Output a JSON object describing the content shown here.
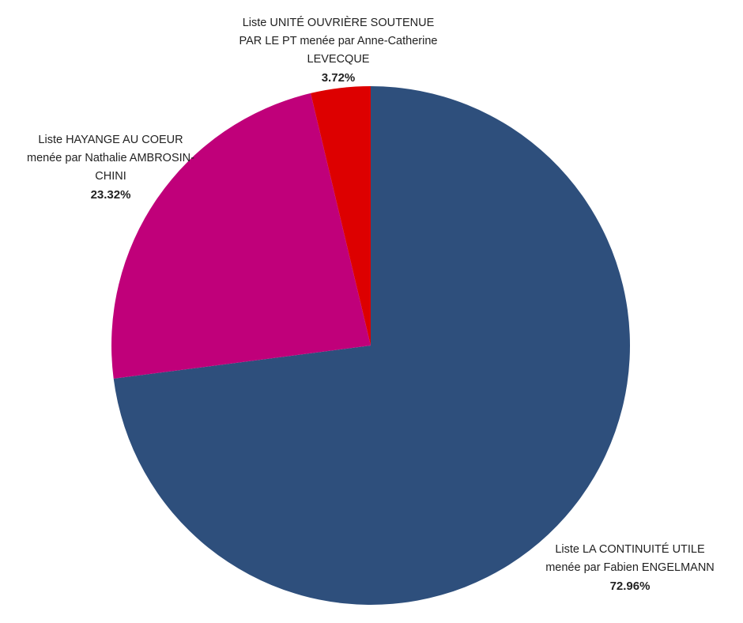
{
  "chart_data": {
    "type": "pie",
    "categories": [
      "Liste LA CONTINUITÉ UTILE menée par Fabien ENGELMANN",
      "Liste HAYANGE AU COEUR menée par Nathalie AMBROSIN-CHINI",
      "Liste UNITÉ OUVRIÈRE SOUTENUE PAR LE PT menée par Anne-Catherine LEVECQUE"
    ],
    "values": [
      72.96,
      23.32,
      3.72
    ],
    "value_labels": [
      "72.96%",
      "23.32%",
      "3.72%"
    ],
    "colors": [
      "#2e4f7c",
      "#c0007a",
      "#dd0000"
    ]
  }
}
